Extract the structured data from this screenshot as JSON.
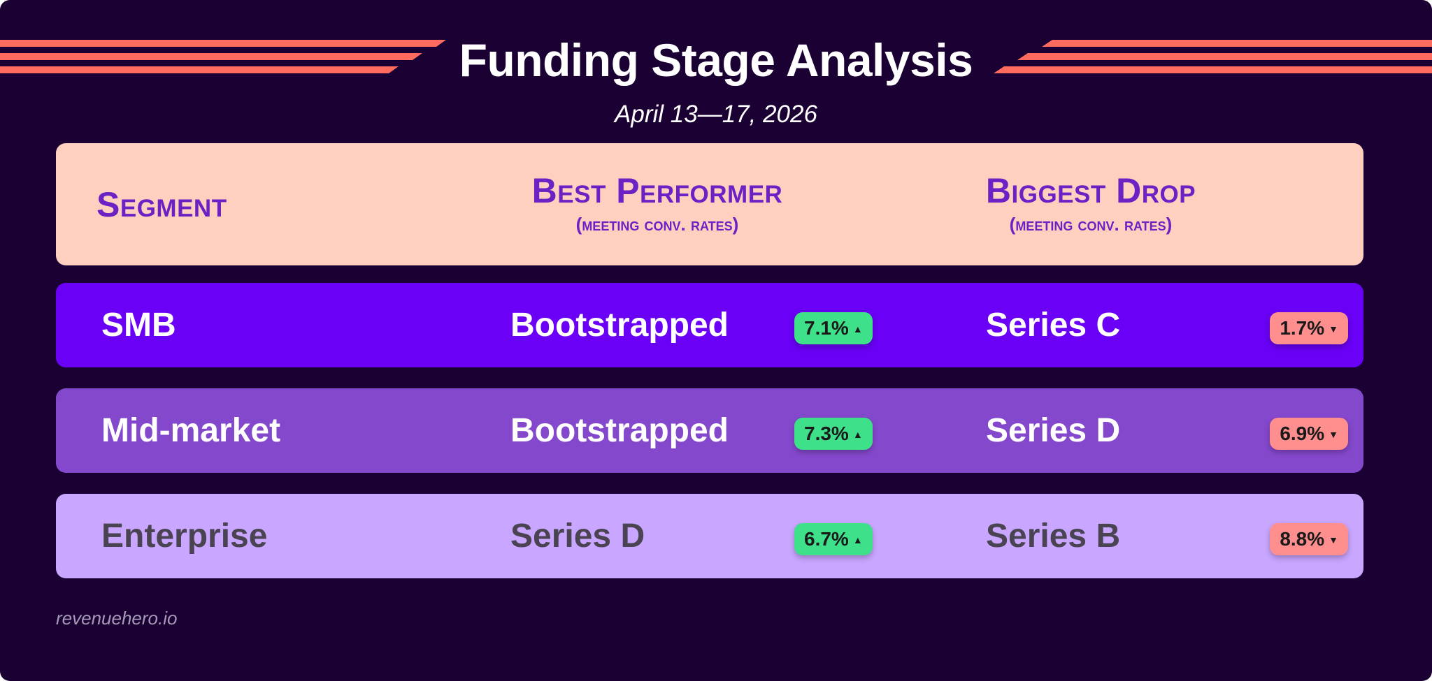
{
  "title": "Funding Stage Analysis",
  "subtitle": "April 13—17, 2026",
  "header": {
    "segment": "Segment",
    "best_performer": "Best Performer",
    "best_performer_sub": "(meeting conv. rates)",
    "biggest_drop": "Biggest Drop",
    "biggest_drop_sub": "(meeting conv. rates)"
  },
  "rows": [
    {
      "segment": "SMB",
      "best": "Bootstrapped",
      "best_change": "7.1%",
      "best_arrow": "▲",
      "drop": "Series C",
      "drop_change": "1.7%",
      "drop_arrow": "▼"
    },
    {
      "segment": "Mid-market",
      "best": "Bootstrapped",
      "best_change": "7.3%",
      "best_arrow": "▲",
      "drop": "Series D",
      "drop_change": "6.9%",
      "drop_arrow": "▼"
    },
    {
      "segment": "Enterprise",
      "best": "Series D",
      "best_change": "6.7%",
      "best_arrow": "▲",
      "drop": "Series B",
      "drop_change": "8.8%",
      "drop_arrow": "▼"
    }
  ],
  "footer": "revenuehero.io",
  "colors": {
    "background": "#1a0033",
    "stripe": "#ff6b5e",
    "header_bg": "#ffcfc0",
    "header_text": "#6a22c4",
    "row_smb": "#6a00f5",
    "row_midmarket": "#8448cc",
    "row_enterprise": "#c9a6ff",
    "badge_up": "#3fe08a",
    "badge_down": "#ff8f8f"
  }
}
